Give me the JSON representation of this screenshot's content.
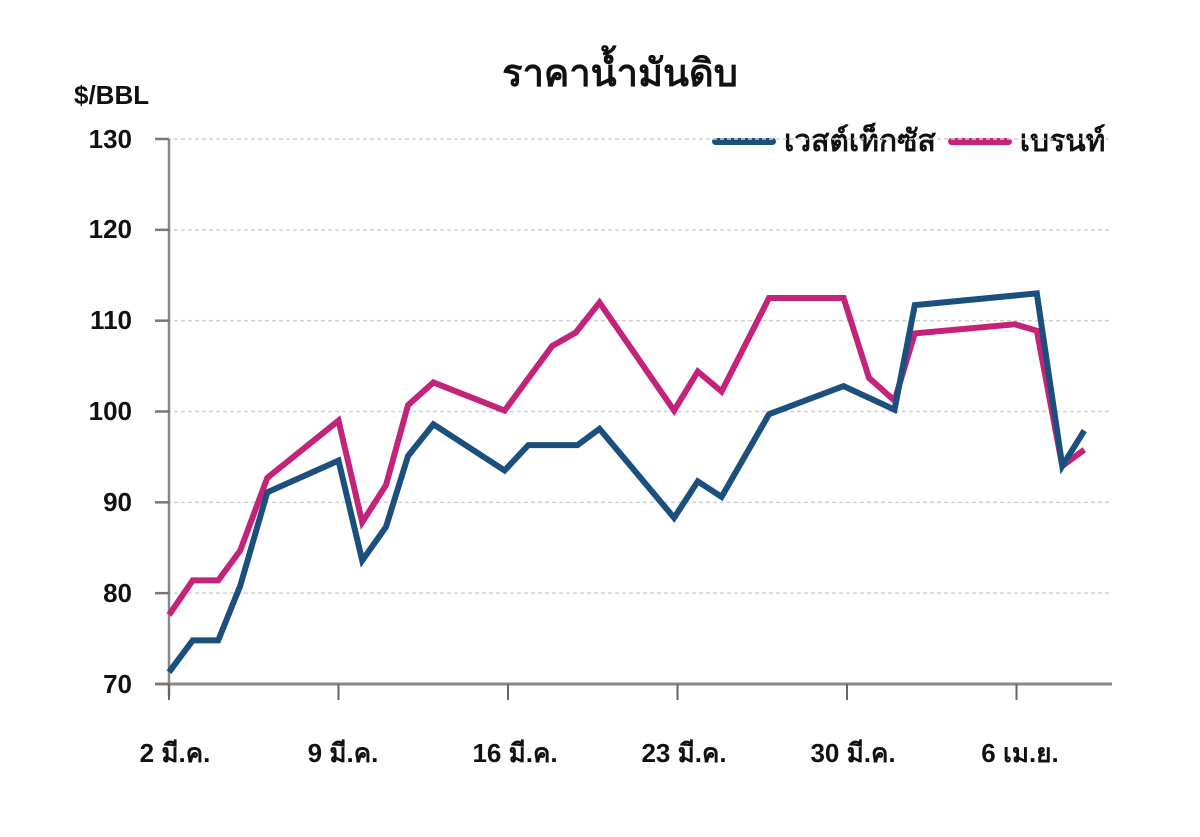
{
  "chart": {
    "title": "ราคาน้ำมันดิบ",
    "y_unit": "$/BBL",
    "y_ticks": [
      "130",
      "120",
      "110",
      "100",
      "90",
      "80",
      "70"
    ],
    "x_ticks": [
      "2 มี.ค.",
      "9 มี.ค.",
      "16 มี.ค.",
      "23 มี.ค.",
      "30 มี.ค.",
      "6 เม.ย."
    ],
    "legend": [
      {
        "label": "เวสต์เท็กซัส",
        "color": "#1b4f7e"
      },
      {
        "label": "เบรนท์",
        "color": "#c4237a"
      }
    ]
  },
  "chart_data": {
    "type": "line",
    "title": "ราคาน้ำมันดิบ",
    "xlabel": "",
    "ylabel": "$/BBL",
    "ylim": [
      70,
      130
    ],
    "grid": true,
    "legend_position": "top-right",
    "x_tick_labels": [
      "2 มี.ค.",
      "9 มี.ค.",
      "16 มี.ค.",
      "23 มี.ค.",
      "30 มี.ค.",
      "6 เม.ย."
    ],
    "x_index": [
      0,
      0.7,
      1.45,
      2.1,
      2.9,
      5.0,
      5.7,
      6.4,
      7.05,
      7.8,
      9.9,
      10.6,
      11.3,
      12.0,
      12.7,
      14.9,
      15.6,
      16.3,
      17.7,
      19.9,
      20.65,
      21.4,
      22.0,
      24.95,
      25.6,
      26.35,
      27.0
    ],
    "series": [
      {
        "name": "เวสต์เท็กซัส",
        "color": "#1b4f7e",
        "points": [
          [
            0,
            71.3
          ],
          [
            0.7,
            74.8
          ],
          [
            1.45,
            74.8
          ],
          [
            2.1,
            80.8
          ],
          [
            2.9,
            91.1
          ],
          [
            5.0,
            94.6
          ],
          [
            5.7,
            83.6
          ],
          [
            6.4,
            87.3
          ],
          [
            7.05,
            95.1
          ],
          [
            7.8,
            98.6
          ],
          [
            9.9,
            93.5
          ],
          [
            10.6,
            96.3
          ],
          [
            12.05,
            96.3
          ],
          [
            12.7,
            98.1
          ],
          [
            14.9,
            88.3
          ],
          [
            15.6,
            92.3
          ],
          [
            16.3,
            90.6
          ],
          [
            17.7,
            99.7
          ],
          [
            19.9,
            102.8
          ],
          [
            21.4,
            100.2
          ],
          [
            22.0,
            111.7
          ],
          [
            25.6,
            113.0
          ],
          [
            26.35,
            94.0
          ],
          [
            27.0,
            97.9
          ]
        ]
      },
      {
        "name": "เบรนท์",
        "color": "#c4237a",
        "points": [
          [
            0,
            77.6
          ],
          [
            0.7,
            81.4
          ],
          [
            1.45,
            81.4
          ],
          [
            2.1,
            84.7
          ],
          [
            2.9,
            92.7
          ],
          [
            5.0,
            99.0
          ],
          [
            5.7,
            87.8
          ],
          [
            6.4,
            91.9
          ],
          [
            7.05,
            100.7
          ],
          [
            7.8,
            103.2
          ],
          [
            9.9,
            100.1
          ],
          [
            11.3,
            107.2
          ],
          [
            12.0,
            108.7
          ],
          [
            12.7,
            112.0
          ],
          [
            14.9,
            100.1
          ],
          [
            15.6,
            104.4
          ],
          [
            16.3,
            102.2
          ],
          [
            17.7,
            112.5
          ],
          [
            19.9,
            112.5
          ],
          [
            20.65,
            103.7
          ],
          [
            21.4,
            101.2
          ],
          [
            22.0,
            108.6
          ],
          [
            24.95,
            109.6
          ],
          [
            25.6,
            108.9
          ],
          [
            26.35,
            94.0
          ],
          [
            27.0,
            95.8
          ]
        ]
      }
    ]
  }
}
